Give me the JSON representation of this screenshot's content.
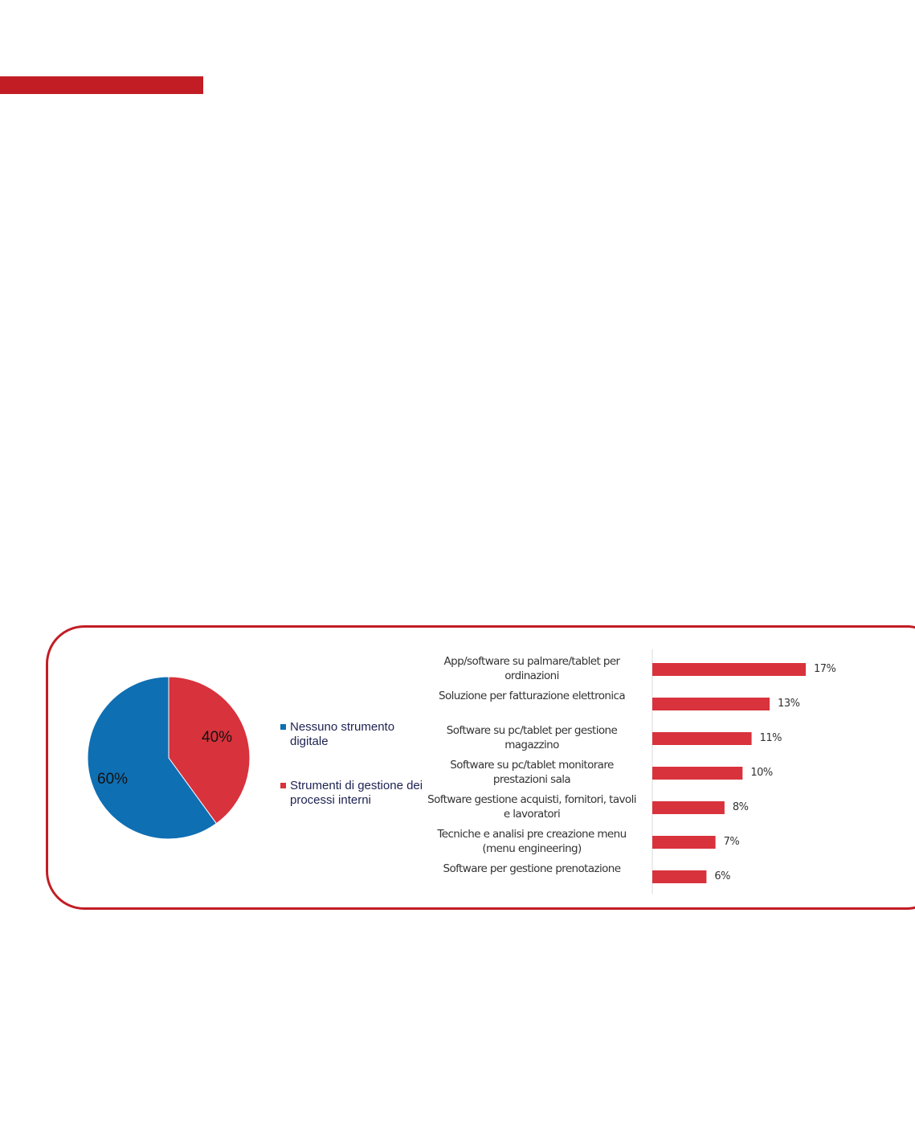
{
  "colors": {
    "accent": "#c21d24",
    "pie_blue": "#0f6fb3",
    "pie_red": "#d8323c",
    "bar": "#d8323c"
  },
  "chart_data": [
    {
      "type": "pie",
      "slices": [
        {
          "name": "Strumenti di gestione dei processi interni",
          "value": 40,
          "label": "40%",
          "color": "#d8323c"
        },
        {
          "name": "Nessuno strumento digitale",
          "value": 60,
          "label": "60%",
          "color": "#0f6fb3"
        }
      ],
      "legend": [
        {
          "label": "Nessuno strumento digitale",
          "color": "#0f6fb3"
        },
        {
          "label": "Strumenti di gestione dei processi interni",
          "color": "#d8323c"
        }
      ],
      "legend_placement": "right"
    },
    {
      "type": "bar",
      "orientation": "horizontal",
      "categories": [
        "App/software su palmare/tablet per ordinazioni",
        "Soluzione per fatturazione elettronica",
        "Software su pc/tablet per gestione magazzino",
        "Software su pc/tablet monitorare prestazioni sala",
        "Software gestione acquisti, fornitori, tavoli e lavoratori",
        "Tecniche e analisi pre creazione menu (menu engineering)",
        "Software per gestione prenotazione"
      ],
      "values": [
        17,
        13,
        11,
        10,
        8,
        7,
        6
      ],
      "value_labels": [
        "17%",
        "13%",
        "11%",
        "10%",
        "8%",
        "7%",
        "6%"
      ],
      "xlim": [
        0,
        17
      ],
      "grid": false
    }
  ]
}
